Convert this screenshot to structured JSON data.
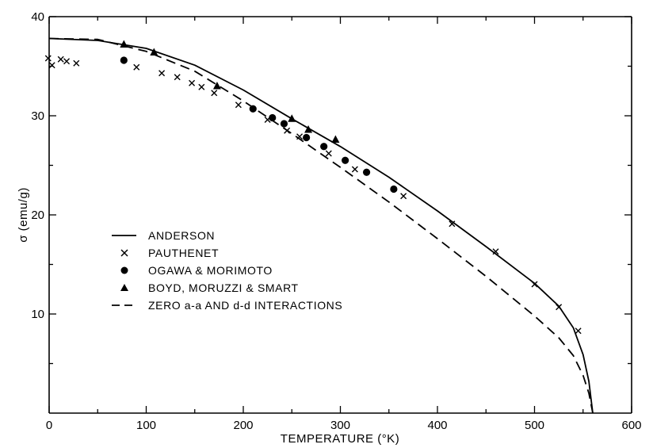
{
  "chart_data": {
    "type": "line",
    "xlabel": "TEMPERATURE (°K)",
    "ylabel": "σ (emu/g)",
    "xlim": [
      0,
      600
    ],
    "ylim": [
      0,
      40
    ],
    "x_ticks": [
      0,
      100,
      200,
      300,
      400,
      500,
      600
    ],
    "x_tick_labels": [
      "0",
      "100",
      "200",
      "300",
      "400",
      "500",
      "600"
    ],
    "y_ticks": [
      10,
      20,
      30,
      40
    ],
    "y_tick_labels": [
      "10",
      "20",
      "30",
      "40"
    ],
    "grid": false,
    "legend_position": "left-center",
    "series": [
      {
        "name": "ANDERSON",
        "style": "solid-line",
        "points": [
          [
            0,
            37.8
          ],
          [
            50,
            37.6
          ],
          [
            100,
            36.8
          ],
          [
            150,
            35.1
          ],
          [
            200,
            32.6
          ],
          [
            250,
            29.7
          ],
          [
            300,
            26.9
          ],
          [
            350,
            23.8
          ],
          [
            400,
            20.4
          ],
          [
            450,
            16.8
          ],
          [
            500,
            13.1
          ],
          [
            525,
            10.8
          ],
          [
            540,
            8.6
          ],
          [
            550,
            5.9
          ],
          [
            556,
            3.2
          ],
          [
            560,
            0
          ]
        ]
      },
      {
        "name": "PAUTHENET",
        "style": "x-marker",
        "points": [
          [
            -1,
            35.8
          ],
          [
            3,
            35.1
          ],
          [
            12,
            35.7
          ],
          [
            18,
            35.5
          ],
          [
            28,
            35.3
          ],
          [
            90,
            34.9
          ],
          [
            116,
            34.3
          ],
          [
            132,
            33.9
          ],
          [
            147,
            33.3
          ],
          [
            157,
            32.9
          ],
          [
            170,
            32.3
          ],
          [
            195,
            31.1
          ],
          [
            225,
            29.6
          ],
          [
            245,
            28.5
          ],
          [
            258,
            27.9
          ],
          [
            288,
            26.2
          ],
          [
            315,
            24.6
          ],
          [
            365,
            21.9
          ],
          [
            415,
            19.1
          ],
          [
            460,
            16.3
          ],
          [
            500,
            13.0
          ],
          [
            525,
            10.7
          ],
          [
            545,
            8.3
          ]
        ]
      },
      {
        "name": "OGAWA & MORIMOTO",
        "style": "filled-circle",
        "points": [
          [
            77,
            35.6
          ],
          [
            210,
            30.7
          ],
          [
            230,
            29.8
          ],
          [
            242,
            29.2
          ],
          [
            265,
            27.8
          ],
          [
            283,
            26.9
          ],
          [
            305,
            25.5
          ],
          [
            327,
            24.3
          ],
          [
            355,
            22.6
          ]
        ]
      },
      {
        "name": "BOYD, MORUZZI & SMART",
        "style": "filled-triangle",
        "points": [
          [
            77,
            37.2
          ],
          [
            108,
            36.4
          ],
          [
            173,
            33.0
          ],
          [
            267,
            28.6
          ],
          [
            250,
            29.7
          ],
          [
            295,
            27.6
          ]
        ]
      },
      {
        "name": "ZERO a-a AND d-d INTERACTIONS",
        "style": "dashed-line",
        "points": [
          [
            0,
            37.8
          ],
          [
            50,
            37.7
          ],
          [
            100,
            36.5
          ],
          [
            150,
            34.5
          ],
          [
            200,
            31.5
          ],
          [
            250,
            28.2
          ],
          [
            300,
            24.8
          ],
          [
            350,
            21.3
          ],
          [
            400,
            17.6
          ],
          [
            450,
            13.8
          ],
          [
            500,
            9.8
          ],
          [
            525,
            7.6
          ],
          [
            540,
            5.8
          ],
          [
            550,
            3.8
          ],
          [
            556,
            2.0
          ],
          [
            560,
            0
          ]
        ]
      }
    ]
  }
}
